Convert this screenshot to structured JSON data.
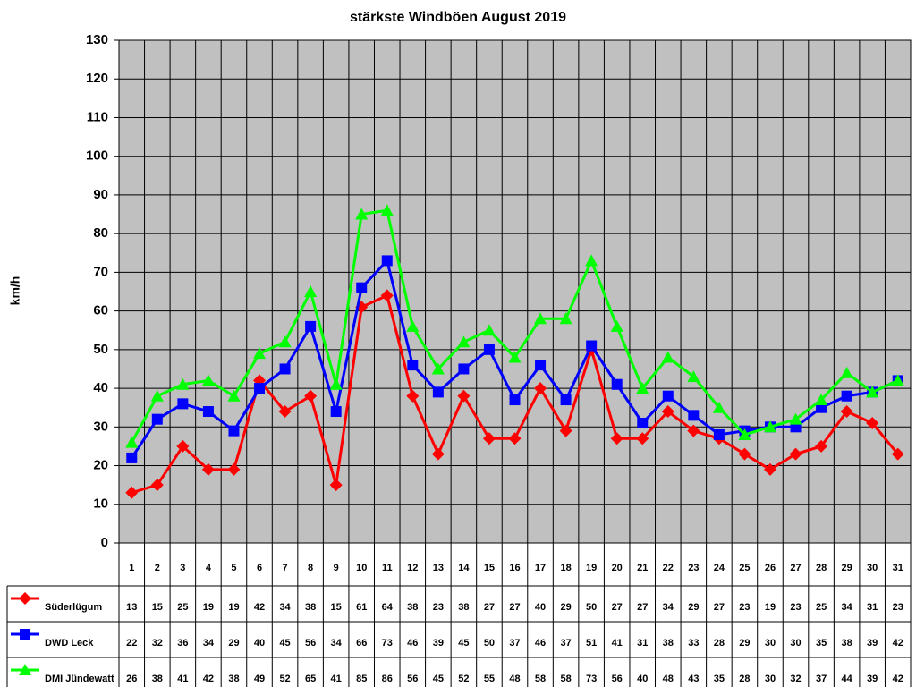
{
  "chart_data": {
    "type": "line",
    "title": "stärkste Windböen August 2019",
    "y_label": "km/h",
    "categories": [
      "1",
      "2",
      "3",
      "4",
      "5",
      "6",
      "7",
      "8",
      "9",
      "10",
      "11",
      "12",
      "13",
      "14",
      "15",
      "16",
      "17",
      "18",
      "19",
      "20",
      "21",
      "22",
      "23",
      "24",
      "25",
      "26",
      "27",
      "28",
      "29",
      "30",
      "31"
    ],
    "series": [
      {
        "name": "Süderlügum",
        "color": "#ff0000",
        "marker": "diamond",
        "values": [
          13,
          15,
          25,
          19,
          19,
          42,
          34,
          38,
          15,
          61,
          64,
          38,
          23,
          38,
          27,
          27,
          40,
          29,
          50,
          27,
          27,
          34,
          29,
          27,
          23,
          19,
          23,
          25,
          34,
          31,
          23
        ]
      },
      {
        "name": "DWD Leck",
        "color": "#0000ff",
        "marker": "square",
        "values": [
          22,
          32,
          36,
          34,
          29,
          40,
          45,
          56,
          34,
          66,
          73,
          46,
          39,
          45,
          50,
          37,
          46,
          37,
          51,
          41,
          31,
          38,
          33,
          28,
          29,
          30,
          30,
          35,
          38,
          39,
          42
        ]
      },
      {
        "name": "DMI Jündewatt",
        "color": "#00ff00",
        "marker": "triangle",
        "values": [
          26,
          38,
          41,
          42,
          38,
          49,
          52,
          65,
          41,
          85,
          86,
          56,
          45,
          52,
          55,
          48,
          58,
          58,
          73,
          56,
          40,
          48,
          43,
          35,
          28,
          30,
          32,
          37,
          44,
          39,
          42
        ]
      }
    ],
    "ylim": [
      0,
      130
    ],
    "yticks": [
      0,
      10,
      20,
      30,
      40,
      50,
      60,
      70,
      80,
      90,
      100,
      110,
      120,
      130
    ],
    "grid": true,
    "background": "#c0c0c0"
  }
}
